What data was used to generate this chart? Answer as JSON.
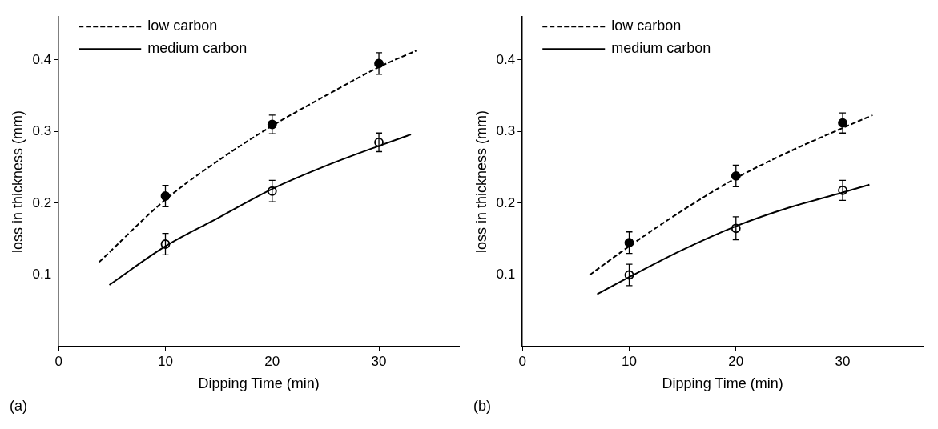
{
  "chart_data": [
    {
      "type": "scatter",
      "xlabel": "Dipping Time (min)",
      "ylabel": "loss in thickness (mm)",
      "annotations": [
        "(a)"
      ],
      "xlim": [
        0,
        37.5
      ],
      "ylim": [
        0,
        0.46
      ],
      "xticks": [
        0,
        10,
        20,
        30
      ],
      "yticks": [
        0.1,
        0.2,
        0.3,
        0.4
      ],
      "grid": false,
      "legend": "top left",
      "series": [
        {
          "type": "line",
          "name": "low carbon",
          "color": "#000000",
          "line_style": "dashed",
          "marker": "none",
          "x": [
            3.8,
            10,
            15,
            20,
            25,
            30,
            33.5
          ],
          "values": [
            0.118,
            0.205,
            0.26,
            0.308,
            0.35,
            0.39,
            0.413
          ]
        },
        {
          "type": "line",
          "name": "medium carbon",
          "color": "#000000",
          "line_style": "solid",
          "marker": "none",
          "x": [
            4.75,
            10,
            15,
            20,
            25,
            30,
            33
          ],
          "values": [
            0.086,
            0.14,
            0.18,
            0.22,
            0.252,
            0.28,
            0.296
          ]
        },
        {
          "color": "#000000",
          "marker": "circle",
          "x": [
            10,
            20,
            30
          ],
          "values": [
            0.21,
            0.31,
            0.395
          ],
          "errors": [
            0.015,
            0.013,
            0.015
          ]
        },
        {
          "color": "#000000",
          "marker": "circle",
          "x": [
            10,
            20,
            30
          ],
          "values": [
            0.143,
            0.217,
            0.285
          ],
          "errors": [
            0.015,
            0.015,
            0.013
          ]
        }
      ]
    },
    {
      "type": "scatter",
      "xlabel": "Dipping Time (min)",
      "ylabel": "loss in thickness (mm)",
      "annotations": [
        "(b)"
      ],
      "xlim": [
        0,
        37.5
      ],
      "ylim": [
        0,
        0.46
      ],
      "xticks": [
        0,
        10,
        20,
        30
      ],
      "yticks": [
        0.1,
        0.2,
        0.3,
        0.4
      ],
      "grid": false,
      "legend": "top left",
      "series": [
        {
          "type": "line",
          "name": "low carbon",
          "color": "#000000",
          "line_style": "dashed",
          "marker": "none",
          "x": [
            6.3,
            10,
            15,
            20,
            25,
            30,
            32.8
          ],
          "values": [
            0.1,
            0.14,
            0.19,
            0.235,
            0.272,
            0.305,
            0.323
          ]
        },
        {
          "type": "line",
          "name": "medium carbon",
          "color": "#000000",
          "line_style": "solid",
          "marker": "none",
          "x": [
            7.0,
            10,
            15,
            20,
            25,
            30,
            32.5
          ],
          "values": [
            0.073,
            0.097,
            0.135,
            0.168,
            0.194,
            0.215,
            0.226
          ]
        },
        {
          "color": "#000000",
          "marker": "circle",
          "x": [
            10,
            20,
            30
          ],
          "values": [
            0.145,
            0.238,
            0.312
          ],
          "errors": [
            0.015,
            0.015,
            0.014
          ]
        },
        {
          "color": "#000000",
          "marker": "circle",
          "x": [
            10,
            20,
            30
          ],
          "values": [
            0.1,
            0.165,
            0.218
          ],
          "errors": [
            0.015,
            0.016,
            0.014
          ]
        }
      ]
    }
  ]
}
